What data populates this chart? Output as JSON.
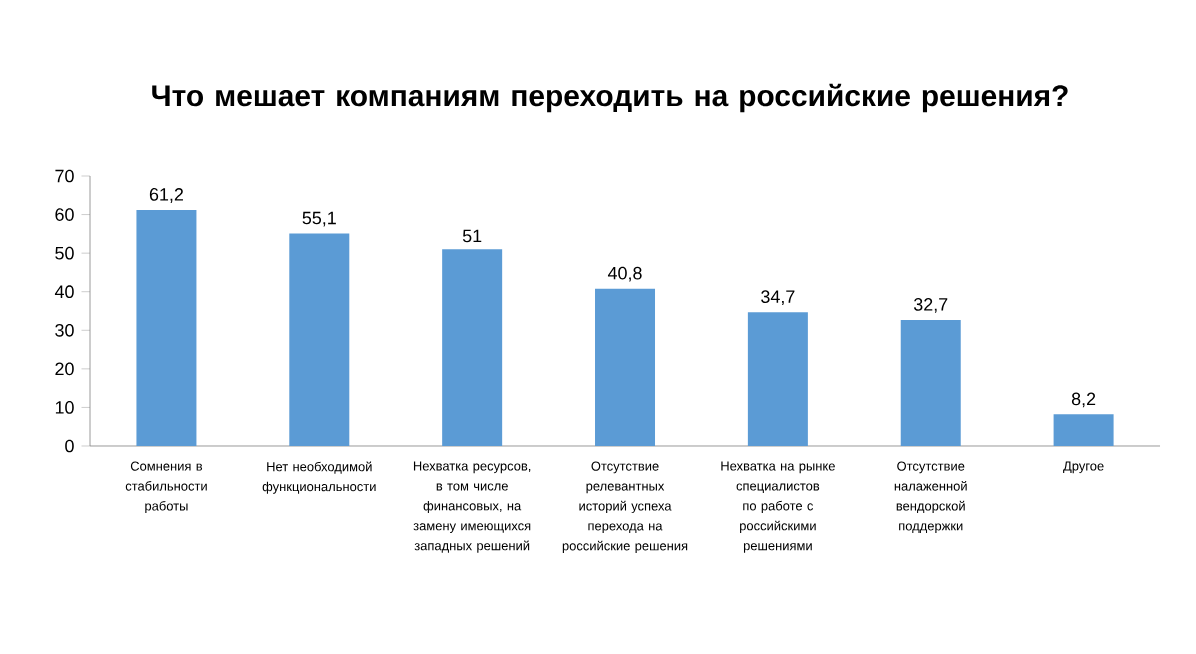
{
  "chart_data": {
    "type": "bar",
    "title": "Что мешает компаниям переходить на российские решения?",
    "categories": [
      "Сомнения в стабильности работы",
      "Нет необходимой функциональности",
      "Нехватка  ресурсов, в том числе финансовых, на замену имеющихся западных решений",
      "Отсутствие релевантных историй успеха перехода на российские решения",
      "Нехватка  на рынке специалистов по работе с российскими решениями",
      "Отсутствие налаженной вендорской поддержки",
      "Другое"
    ],
    "values": [
      61.2,
      55.1,
      51,
      40.8,
      34.7,
      32.7,
      8.2
    ],
    "value_labels": [
      "61,2",
      "55,1",
      "51",
      "40,8",
      "34,7",
      "32,7",
      "8,2"
    ],
    "color": "#5b9bd5",
    "ylim": [
      0,
      70
    ],
    "yticks": [
      0,
      10,
      20,
      30,
      40,
      50,
      60,
      70
    ],
    "grid": false
  }
}
